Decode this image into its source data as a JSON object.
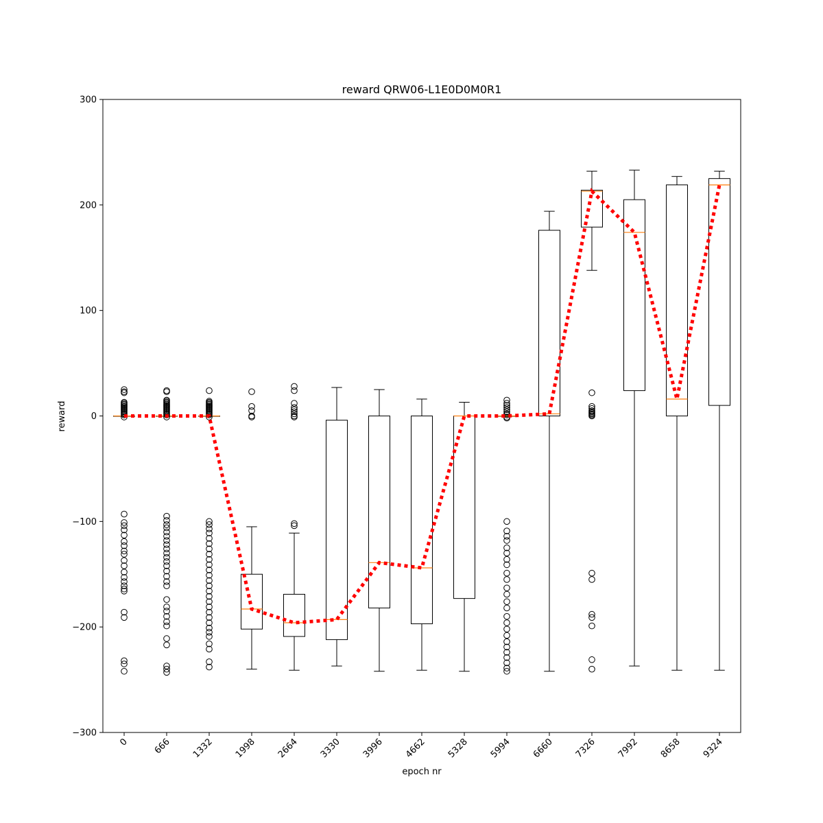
{
  "chart_data": {
    "type": "box",
    "title": "reward QRW06-L1E0D0M0R1",
    "xlabel": "epoch nr",
    "ylabel": "reward",
    "ylim": [
      -300,
      300
    ],
    "yticks": [
      -300,
      -200,
      -100,
      0,
      100,
      200,
      300
    ],
    "ytick_labels": [
      "−300",
      "−200",
      "−100",
      "0",
      "100",
      "200",
      "300"
    ],
    "categories": [
      "0",
      "666",
      "1332",
      "1998",
      "2664",
      "3330",
      "3996",
      "4662",
      "5328",
      "5994",
      "6660",
      "7326",
      "7992",
      "8658",
      "9324"
    ],
    "grid": false,
    "median_color": "#ff7f0e",
    "trend_color": "#ff0000",
    "boxes": [
      {
        "whislo": 0,
        "q1": 0,
        "med": 0,
        "q3": 0,
        "whishi": 0,
        "fliers": [
          25,
          23,
          22,
          13,
          12,
          11,
          10,
          9,
          8,
          7,
          6,
          5,
          4,
          3,
          2,
          1,
          -1,
          -93,
          -101,
          -104,
          -108,
          -113,
          -119,
          -123,
          -128,
          -131,
          -137,
          -142,
          -148,
          -153,
          -157,
          -161,
          -164,
          -166,
          -186,
          -191,
          -232,
          -235,
          -242
        ]
      },
      {
        "whislo": 0,
        "q1": 0,
        "med": 0,
        "q3": 0,
        "whishi": 0,
        "fliers": [
          24,
          23,
          15,
          14,
          13,
          12,
          11,
          10,
          9,
          8,
          7,
          6,
          5,
          4,
          3,
          2,
          1,
          -1,
          -95,
          -99,
          -103,
          -106,
          -110,
          -114,
          -118,
          -122,
          -126,
          -130,
          -134,
          -138,
          -142,
          -147,
          -152,
          -157,
          -161,
          -174,
          -181,
          -185,
          -190,
          -195,
          -199,
          -211,
          -217,
          -237,
          -240,
          -243
        ]
      },
      {
        "whislo": 0,
        "q1": 0,
        "med": 0,
        "q3": 0,
        "whishi": 0,
        "fliers": [
          24,
          14,
          13,
          12,
          11,
          10,
          9,
          8,
          7,
          6,
          5,
          4,
          3,
          2,
          1,
          -1,
          -100,
          -103,
          -107,
          -111,
          -116,
          -121,
          -126,
          -131,
          -136,
          -141,
          -146,
          -151,
          -156,
          -161,
          -166,
          -171,
          -176,
          -181,
          -186,
          -191,
          -196,
          -201,
          -205,
          -209,
          -216,
          -221,
          -233,
          -238
        ]
      },
      {
        "whislo": -240,
        "q1": -202,
        "med": -183,
        "q3": -150,
        "whishi": -105,
        "fliers": [
          23,
          9,
          5,
          0,
          -1
        ]
      },
      {
        "whislo": -241,
        "q1": -209,
        "med": -196,
        "q3": -169,
        "whishi": -111,
        "fliers": [
          28,
          24,
          12,
          8,
          6,
          4,
          2,
          0,
          -1,
          -102,
          -104
        ]
      },
      {
        "whislo": -237,
        "q1": -212,
        "med": -193,
        "q3": -4,
        "whishi": 27,
        "fliers": []
      },
      {
        "whislo": -242,
        "q1": -182,
        "med": -139,
        "q3": 0,
        "whishi": 25,
        "fliers": []
      },
      {
        "whislo": -241,
        "q1": -197,
        "med": -144,
        "q3": 0,
        "whishi": 16,
        "fliers": []
      },
      {
        "whislo": -242,
        "q1": -173,
        "med": 0,
        "q3": 0,
        "whishi": 13,
        "fliers": []
      },
      {
        "whislo": 0,
        "q1": 0,
        "med": 0,
        "q3": 0,
        "whishi": 0,
        "fliers": [
          15,
          12,
          10,
          8,
          6,
          4,
          2,
          1,
          -1,
          -2,
          -100,
          -109,
          -114,
          -118,
          -125,
          -130,
          -136,
          -141,
          -149,
          -155,
          -163,
          -169,
          -176,
          -182,
          -190,
          -196,
          -202,
          -208,
          -214,
          -219,
          -224,
          -229,
          -234,
          -239,
          -242
        ]
      },
      {
        "whislo": -242,
        "q1": 0,
        "med": 2,
        "q3": 176,
        "whishi": 194,
        "fliers": []
      },
      {
        "whislo": 138,
        "q1": 179,
        "med": 213,
        "q3": 214,
        "whishi": 232,
        "fliers": [
          22,
          9,
          7,
          5,
          4,
          3,
          2,
          1,
          0,
          -149,
          -155,
          -188,
          -191,
          -199,
          -231,
          -240
        ]
      },
      {
        "whislo": -237,
        "q1": 24,
        "med": 174,
        "q3": 205,
        "whishi": 233,
        "fliers": []
      },
      {
        "whislo": -241,
        "q1": 0,
        "med": 16,
        "q3": 219,
        "whishi": 227,
        "fliers": []
      },
      {
        "whislo": -241,
        "q1": 10,
        "med": 219,
        "q3": 225,
        "whishi": 232,
        "fliers": []
      }
    ],
    "trend_line": [
      0,
      0,
      0,
      -183,
      -196,
      -193,
      -139,
      -144,
      0,
      0,
      2,
      213,
      174,
      16,
      219
    ]
  }
}
